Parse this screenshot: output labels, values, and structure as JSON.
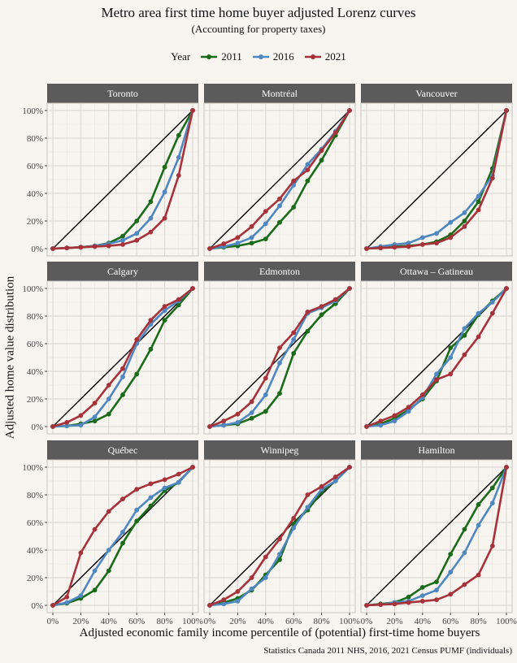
{
  "title": "Metro area first time home buyer adjusted Lorenz curves",
  "subtitle": "(Accounting for property taxes)",
  "legend": {
    "title": "Year",
    "entries": [
      {
        "label": "2011",
        "color": "#1a6b1a"
      },
      {
        "label": "2016",
        "color": "#4f88c0"
      },
      {
        "label": "2021",
        "color": "#a8323a"
      }
    ]
  },
  "xlabel": "Adjusted economic family income percentile of (potential) first-time home buyers",
  "ylabel": "Adjusted home value distribution",
  "caption": "Statistics Canada 2011 NHS, 2016, 2021 Census PUMF (individuals)",
  "chart_data": {
    "type": "line",
    "layout": "facet-grid-3x3",
    "x": [
      0,
      10,
      20,
      30,
      40,
      50,
      60,
      70,
      80,
      90,
      100
    ],
    "xlim": [
      0,
      100
    ],
    "ylim": [
      0,
      100
    ],
    "tick_labels": [
      "0%",
      "20%",
      "40%",
      "60%",
      "80%",
      "100%"
    ],
    "reference_line": "equality diagonal",
    "grid": true,
    "legend_position": "top",
    "panels": [
      {
        "name": "Toronto",
        "series": [
          {
            "name": "2011",
            "values": [
              0,
              0.5,
              1,
              2,
              4,
              9,
              20,
              34,
              59,
              82,
              100
            ]
          },
          {
            "name": "2016",
            "values": [
              0,
              0.5,
              1,
              2,
              3.5,
              6,
              11,
              22,
              41,
              66,
              100
            ]
          },
          {
            "name": "2021",
            "values": [
              0,
              0.5,
              1,
              1.5,
              2,
              3,
              6,
              12,
              22,
              53,
              100
            ]
          }
        ]
      },
      {
        "name": "Montréal",
        "series": [
          {
            "name": "2011",
            "values": [
              0,
              1,
              2,
              4,
              7,
              19,
              30,
              49,
              64,
              82,
              100
            ]
          },
          {
            "name": "2016",
            "values": [
              0,
              1.5,
              4,
              8,
              18,
              31,
              46,
              61,
              72,
              85,
              100
            ]
          },
          {
            "name": "2021",
            "values": [
              0,
              3.5,
              8,
              16,
              27,
              36,
              49,
              57,
              71,
              84,
              100
            ]
          }
        ]
      },
      {
        "name": "Vancouver",
        "series": [
          {
            "name": "2011",
            "values": [
              0,
              0.5,
              1.5,
              2,
              3,
              5,
              10,
              20,
              34,
              58,
              100
            ]
          },
          {
            "name": "2016",
            "values": [
              0,
              1.5,
              3,
              4,
              8,
              11,
              19,
              26,
              38,
              53,
              100
            ]
          },
          {
            "name": "2021",
            "values": [
              0,
              0.5,
              1,
              1.5,
              3,
              4,
              8,
              16,
              28,
              51,
              100
            ]
          }
        ]
      },
      {
        "name": "Calgary",
        "series": [
          {
            "name": "2011",
            "values": [
              0,
              0.5,
              2,
              4,
              9,
              23,
              38,
              56,
              77,
              88,
              100
            ]
          },
          {
            "name": "2016",
            "values": [
              0,
              0.5,
              1,
              7,
              20,
              36,
              60,
              74,
              84,
              91,
              100
            ]
          },
          {
            "name": "2021",
            "values": [
              0,
              3,
              8,
              17,
              30,
              42,
              63,
              77,
              87,
              92,
              100
            ]
          }
        ]
      },
      {
        "name": "Edmonton",
        "series": [
          {
            "name": "2011",
            "values": [
              0,
              1,
              2,
              6,
              11,
              24,
              53,
              69,
              81,
              89,
              100
            ]
          },
          {
            "name": "2016",
            "values": [
              0,
              1,
              3,
              10,
              23,
              46,
              63,
              82,
              86,
              91,
              100
            ]
          },
          {
            "name": "2021",
            "values": [
              0,
              4,
              9,
              18,
              35,
              57,
              68,
              83,
              87,
              92,
              100
            ]
          }
        ]
      },
      {
        "name": "Ottawa – Gatineau",
        "series": [
          {
            "name": "2011",
            "values": [
              0,
              2,
              6,
              12,
              20,
              33,
              57,
              66,
              81,
              91,
              100
            ]
          },
          {
            "name": "2016",
            "values": [
              0,
              1,
              4,
              11,
              21,
              38,
              50,
              71,
              82,
              90,
              100
            ]
          },
          {
            "name": "2021",
            "values": [
              0,
              4,
              8,
              14,
              23,
              34,
              38,
              52,
              65,
              82,
              100
            ]
          }
        ]
      },
      {
        "name": "Québec",
        "series": [
          {
            "name": "2011",
            "values": [
              0,
              1.5,
              5,
              11,
              25,
              45,
              61,
              72,
              83,
              89,
              100
            ]
          },
          {
            "name": "2016",
            "values": [
              0,
              2,
              7,
              25,
              40,
              53,
              69,
              78,
              85,
              89,
              100
            ]
          },
          {
            "name": "2021",
            "values": [
              0,
              6,
              38,
              55,
              68,
              77,
              84,
              88,
              91,
              95,
              100
            ]
          }
        ]
      },
      {
        "name": "Winnipeg",
        "series": [
          {
            "name": "2011",
            "values": [
              0,
              2,
              5,
              11,
              22,
              33,
              59,
              69,
              82,
              90,
              100
            ]
          },
          {
            "name": "2016",
            "values": [
              0,
              1,
              3,
              12,
              20,
              37,
              56,
              71,
              84,
              90,
              100
            ]
          },
          {
            "name": "2021",
            "values": [
              0,
              4,
              10,
              20,
              35,
              48,
              63,
              80,
              86,
              93,
              100
            ]
          }
        ]
      },
      {
        "name": "Hamilton",
        "series": [
          {
            "name": "2011",
            "values": [
              0,
              1,
              2,
              6,
              13,
              17,
              37,
              55,
              73,
              85,
              100
            ]
          },
          {
            "name": "2016",
            "values": [
              0,
              0.5,
              2,
              3,
              7,
              11,
              24,
              38,
              58,
              74,
              100
            ]
          },
          {
            "name": "2021",
            "values": [
              0,
              0.5,
              1,
              2,
              3,
              4,
              8,
              15,
              22,
              43,
              100
            ]
          }
        ]
      }
    ]
  }
}
